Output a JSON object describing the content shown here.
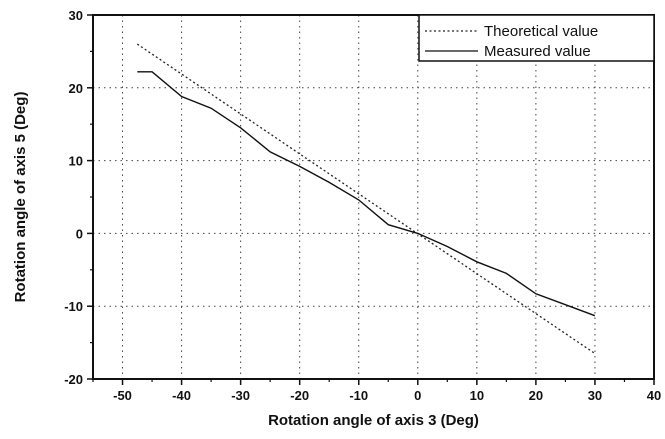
{
  "chart_data": {
    "type": "line",
    "title": "",
    "xlabel": "Rotation angle of axis 3 (Deg)",
    "ylabel": "Rotation angle of axis 5 (Deg)",
    "xlim": [
      -55,
      40
    ],
    "ylim": [
      -20,
      30
    ],
    "x_ticks": [
      -50,
      -40,
      -30,
      -20,
      -10,
      0,
      10,
      20,
      30,
      40
    ],
    "y_ticks": [
      -20,
      -10,
      0,
      10,
      20,
      30
    ],
    "x_tick_labels": [
      "-50",
      "-40",
      "-30",
      "-20",
      "-10",
      "0",
      "10",
      "20",
      "30",
      "40"
    ],
    "y_tick_labels": [
      "-20",
      "-10",
      "0",
      "10",
      "20",
      "30"
    ],
    "grid": true,
    "legend_position": "top-right",
    "series": [
      {
        "name": "Theoretical value",
        "style": "dotted",
        "color": "#222222",
        "x": [
          -47.5,
          30
        ],
        "y": [
          26,
          -16.5
        ]
      },
      {
        "name": "Measured value",
        "style": "solid",
        "color": "#111111",
        "x": [
          -47.5,
          -45,
          -40,
          -35,
          -30,
          -25,
          -20,
          -15,
          -10,
          -5,
          0,
          5,
          10,
          15,
          20,
          25,
          30
        ],
        "y": [
          22.2,
          22.2,
          18.8,
          17.2,
          14.5,
          11.2,
          9.2,
          7,
          4.6,
          1.2,
          0,
          -1.8,
          -3.9,
          -5.5,
          -8.3,
          -9.8,
          -11.3
        ]
      }
    ]
  }
}
